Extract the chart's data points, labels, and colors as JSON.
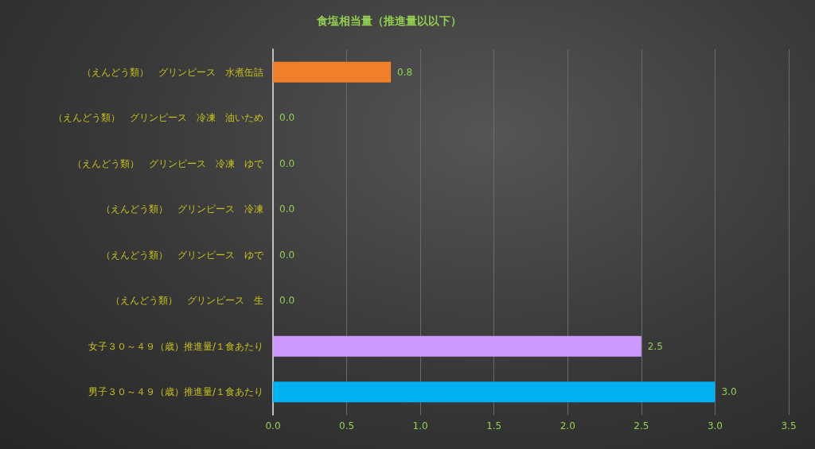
{
  "chart_data": {
    "type": "bar",
    "orientation": "horizontal",
    "title": "食塩相当量（推進量以以下）",
    "categories": [
      "（えんどう類）　グリンピース　水煮缶詰",
      "（えんどう類）　グリンピース　冷凍　油いため",
      "（えんどう類）　グリンピース　冷凍　ゆで",
      "（えんどう類）　グリンピース　冷凍",
      "（えんどう類）　グリンピース　ゆで",
      "（えんどう類）　グリンピース　生",
      "女子３０～４９（歳）推進量/１食あたり",
      "男子３０～４９（歳）推進量/１食あたり"
    ],
    "values": [
      0.8,
      0.0,
      0.0,
      0.0,
      0.0,
      0.0,
      2.5,
      3.0
    ],
    "value_labels": [
      "0.8",
      "0.0",
      "0.0",
      "0.0",
      "0.0",
      "0.0",
      "2.5",
      "3.0"
    ],
    "colors": [
      "#f07f2a",
      "#f07f2a",
      "#f07f2a",
      "#f07f2a",
      "#f07f2a",
      "#f07f2a",
      "#cc99ff",
      "#00b0f0"
    ],
    "xlim": [
      0,
      3.5
    ],
    "xticks": [
      "0.0",
      "0.5",
      "1.0",
      "1.5",
      "2.0",
      "2.5",
      "3.0",
      "3.5"
    ],
    "grid": "x"
  }
}
